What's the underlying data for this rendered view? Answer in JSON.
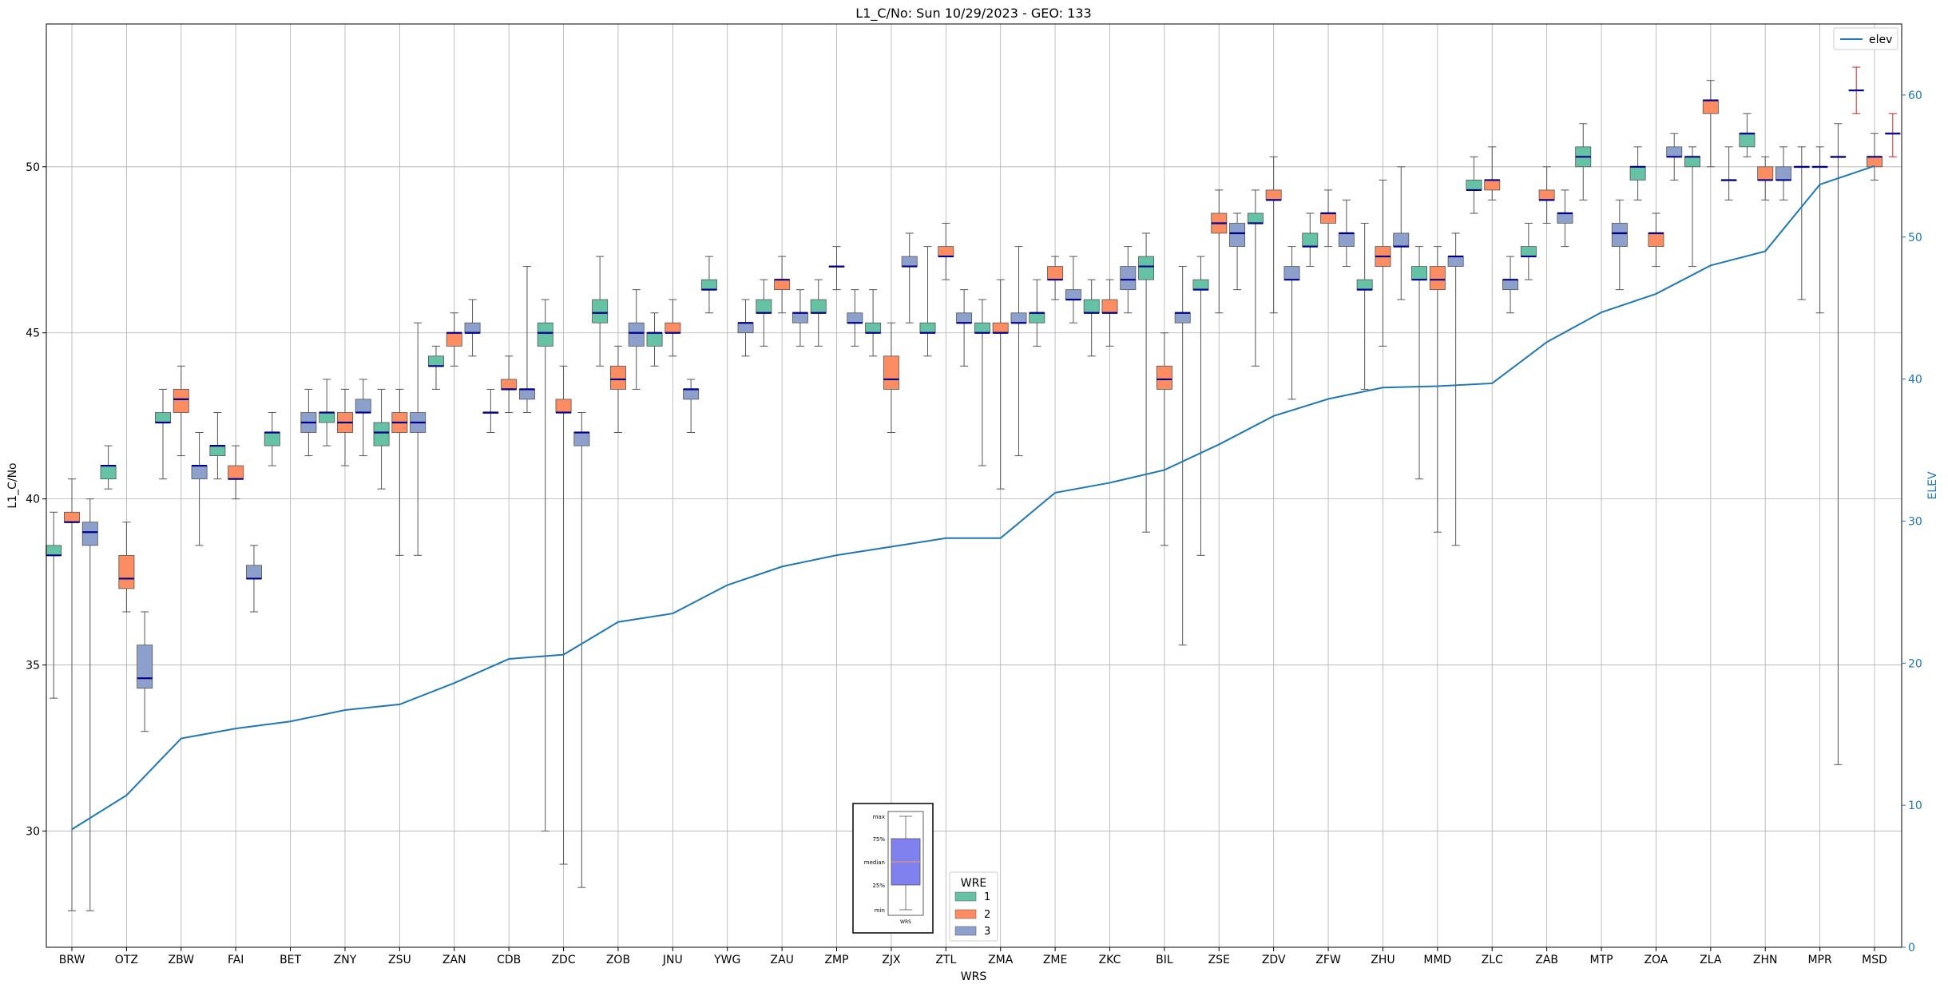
{
  "chart_data": {
    "type": "box",
    "title": "L1_C/No: Sun 10/29/2023 - GEO: 133",
    "xlabel": "WRS",
    "ylabel": "L1_C/No",
    "y2label": "ELEV",
    "ylim": [
      26.5,
      54.3
    ],
    "y2lim": [
      0,
      65
    ],
    "yticks": [
      30,
      35,
      40,
      45,
      50
    ],
    "y2ticks": [
      0,
      10,
      20,
      30,
      40,
      50,
      60
    ],
    "grid": true,
    "categories": [
      "BRW",
      "OTZ",
      "ZBW",
      "FAI",
      "BET",
      "ZNY",
      "ZSU",
      "ZAN",
      "CDB",
      "ZDC",
      "ZOB",
      "JNU",
      "YWG",
      "ZAU",
      "ZMP",
      "ZJX",
      "ZTL",
      "ZMA",
      "ZME",
      "ZKC",
      "BIL",
      "ZSE",
      "ZDV",
      "ZFW",
      "ZHU",
      "MMD",
      "ZLC",
      "ZAB",
      "MTP",
      "ZOA",
      "ZLA",
      "ZHN",
      "MPR",
      "MSD"
    ],
    "hue_title": "WRE",
    "hue_levels": [
      "1",
      "2",
      "3"
    ],
    "colors": {
      "1": "#66c2a5",
      "2": "#fc8d62",
      "3": "#8da0cb",
      "median": "#00008b",
      "whisker": "#555555",
      "red_whisker": "#d62728",
      "elev": "#1f77b4"
    },
    "boxes": [
      {
        "cat": "BRW",
        "wre": 1,
        "min": 34.0,
        "q1": 38.3,
        "med": 38.3,
        "q3": 38.6,
        "max": 39.6
      },
      {
        "cat": "BRW",
        "wre": 2,
        "min": 27.6,
        "q1": 39.3,
        "med": 39.3,
        "q3": 39.6,
        "max": 40.6
      },
      {
        "cat": "BRW",
        "wre": 3,
        "min": 27.6,
        "q1": 38.6,
        "med": 39.0,
        "q3": 39.3,
        "max": 40.0
      },
      {
        "cat": "OTZ",
        "wre": 1,
        "min": 40.3,
        "q1": 40.6,
        "med": 41.0,
        "q3": 41.0,
        "max": 41.6
      },
      {
        "cat": "OTZ",
        "wre": 2,
        "min": 36.6,
        "q1": 37.3,
        "med": 37.6,
        "q3": 38.3,
        "max": 39.3
      },
      {
        "cat": "OTZ",
        "wre": 3,
        "min": 33.0,
        "q1": 34.3,
        "med": 34.6,
        "q3": 35.6,
        "max": 36.6
      },
      {
        "cat": "ZBW",
        "wre": 1,
        "min": 40.6,
        "q1": 42.3,
        "med": 42.3,
        "q3": 42.6,
        "max": 43.3
      },
      {
        "cat": "ZBW",
        "wre": 2,
        "min": 41.3,
        "q1": 42.6,
        "med": 43.0,
        "q3": 43.3,
        "max": 44.0
      },
      {
        "cat": "ZBW",
        "wre": 3,
        "min": 38.6,
        "q1": 40.6,
        "med": 41.0,
        "q3": 41.0,
        "max": 42.0
      },
      {
        "cat": "FAI",
        "wre": 1,
        "min": 40.6,
        "q1": 41.3,
        "med": 41.6,
        "q3": 41.6,
        "max": 42.6
      },
      {
        "cat": "FAI",
        "wre": 2,
        "min": 40.0,
        "q1": 40.6,
        "med": 40.6,
        "q3": 41.0,
        "max": 41.6
      },
      {
        "cat": "FAI",
        "wre": 3,
        "min": 36.6,
        "q1": 37.6,
        "med": 37.6,
        "q3": 38.0,
        "max": 38.6
      },
      {
        "cat": "BET",
        "wre": 1,
        "min": 41.0,
        "q1": 41.6,
        "med": 42.0,
        "q3": 42.0,
        "max": 42.6
      },
      {
        "cat": "BET",
        "wre": 3,
        "min": 41.3,
        "q1": 42.0,
        "med": 42.3,
        "q3": 42.6,
        "max": 43.3
      },
      {
        "cat": "ZNY",
        "wre": 1,
        "min": 41.6,
        "q1": 42.3,
        "med": 42.6,
        "q3": 42.6,
        "max": 43.6
      },
      {
        "cat": "ZNY",
        "wre": 2,
        "min": 41.0,
        "q1": 42.0,
        "med": 42.3,
        "q3": 42.6,
        "max": 43.3
      },
      {
        "cat": "ZNY",
        "wre": 3,
        "min": 41.3,
        "q1": 42.6,
        "med": 42.6,
        "q3": 43.0,
        "max": 43.6
      },
      {
        "cat": "ZSU",
        "wre": 1,
        "min": 40.3,
        "q1": 41.6,
        "med": 42.0,
        "q3": 42.3,
        "max": 43.3
      },
      {
        "cat": "ZSU",
        "wre": 2,
        "min": 38.3,
        "q1": 42.0,
        "med": 42.3,
        "q3": 42.6,
        "max": 43.3
      },
      {
        "cat": "ZSU",
        "wre": 3,
        "min": 38.3,
        "q1": 42.0,
        "med": 42.3,
        "q3": 42.6,
        "max": 45.3
      },
      {
        "cat": "ZAN",
        "wre": 1,
        "min": 43.3,
        "q1": 44.0,
        "med": 44.0,
        "q3": 44.3,
        "max": 44.6
      },
      {
        "cat": "ZAN",
        "wre": 2,
        "min": 44.0,
        "q1": 44.6,
        "med": 45.0,
        "q3": 45.0,
        "max": 45.6
      },
      {
        "cat": "ZAN",
        "wre": 3,
        "min": 44.3,
        "q1": 45.0,
        "med": 45.0,
        "q3": 45.3,
        "max": 46.0
      },
      {
        "cat": "CDB",
        "wre": 1,
        "min": 42.0,
        "q1": 42.6,
        "med": 42.6,
        "q3": 42.6,
        "max": 43.3
      },
      {
        "cat": "CDB",
        "wre": 2,
        "min": 42.6,
        "q1": 43.3,
        "med": 43.3,
        "q3": 43.6,
        "max": 44.3
      },
      {
        "cat": "CDB",
        "wre": 3,
        "min": 42.6,
        "q1": 43.0,
        "med": 43.3,
        "q3": 43.3,
        "max": 47.0
      },
      {
        "cat": "ZDC",
        "wre": 1,
        "min": 30.0,
        "q1": 44.6,
        "med": 45.0,
        "q3": 45.3,
        "max": 46.0
      },
      {
        "cat": "ZDC",
        "wre": 2,
        "min": 29.0,
        "q1": 42.6,
        "med": 42.6,
        "q3": 43.0,
        "max": 44.0
      },
      {
        "cat": "ZDC",
        "wre": 3,
        "min": 28.3,
        "q1": 41.6,
        "med": 42.0,
        "q3": 42.0,
        "max": 42.6
      },
      {
        "cat": "ZOB",
        "wre": 1,
        "min": 44.0,
        "q1": 45.3,
        "med": 45.6,
        "q3": 46.0,
        "max": 47.3
      },
      {
        "cat": "ZOB",
        "wre": 2,
        "min": 42.0,
        "q1": 43.3,
        "med": 43.6,
        "q3": 44.0,
        "max": 44.6
      },
      {
        "cat": "ZOB",
        "wre": 3,
        "min": 43.3,
        "q1": 44.6,
        "med": 45.0,
        "q3": 45.3,
        "max": 46.3
      },
      {
        "cat": "JNU",
        "wre": 1,
        "min": 44.0,
        "q1": 44.6,
        "med": 45.0,
        "q3": 45.0,
        "max": 45.6
      },
      {
        "cat": "JNU",
        "wre": 2,
        "min": 44.3,
        "q1": 45.0,
        "med": 45.0,
        "q3": 45.3,
        "max": 46.0
      },
      {
        "cat": "JNU",
        "wre": 3,
        "min": 42.0,
        "q1": 43.0,
        "med": 43.3,
        "q3": 43.3,
        "max": 43.6
      },
      {
        "cat": "YWG",
        "wre": 1,
        "min": 45.6,
        "q1": 46.3,
        "med": 46.3,
        "q3": 46.6,
        "max": 47.3
      },
      {
        "cat": "YWG",
        "wre": 3,
        "min": 44.3,
        "q1": 45.0,
        "med": 45.3,
        "q3": 45.3,
        "max": 46.0
      },
      {
        "cat": "ZAU",
        "wre": 1,
        "min": 44.6,
        "q1": 45.6,
        "med": 45.6,
        "q3": 46.0,
        "max": 46.6
      },
      {
        "cat": "ZAU",
        "wre": 2,
        "min": 45.6,
        "q1": 46.3,
        "med": 46.6,
        "q3": 46.6,
        "max": 47.3
      },
      {
        "cat": "ZAU",
        "wre": 3,
        "min": 44.6,
        "q1": 45.3,
        "med": 45.6,
        "q3": 45.6,
        "max": 46.3
      },
      {
        "cat": "ZMP",
        "wre": 1,
        "min": 44.6,
        "q1": 45.6,
        "med": 45.6,
        "q3": 46.0,
        "max": 46.6
      },
      {
        "cat": "ZMP",
        "wre": 2,
        "min": 46.3,
        "q1": 47.0,
        "med": 47.0,
        "q3": 47.0,
        "max": 47.6
      },
      {
        "cat": "ZMP",
        "wre": 3,
        "min": 44.6,
        "q1": 45.3,
        "med": 45.3,
        "q3": 45.6,
        "max": 46.3
      },
      {
        "cat": "ZJX",
        "wre": 1,
        "min": 44.3,
        "q1": 45.0,
        "med": 45.0,
        "q3": 45.3,
        "max": 46.3
      },
      {
        "cat": "ZJX",
        "wre": 2,
        "min": 42.0,
        "q1": 43.3,
        "med": 43.6,
        "q3": 44.3,
        "max": 45.3
      },
      {
        "cat": "ZJX",
        "wre": 3,
        "min": 45.3,
        "q1": 47.0,
        "med": 47.0,
        "q3": 47.3,
        "max": 48.0
      },
      {
        "cat": "ZTL",
        "wre": 1,
        "min": 44.3,
        "q1": 45.0,
        "med": 45.0,
        "q3": 45.3,
        "max": 47.6
      },
      {
        "cat": "ZTL",
        "wre": 2,
        "min": 46.6,
        "q1": 47.3,
        "med": 47.3,
        "q3": 47.6,
        "max": 48.3
      },
      {
        "cat": "ZTL",
        "wre": 3,
        "min": 44.0,
        "q1": 45.3,
        "med": 45.3,
        "q3": 45.6,
        "max": 46.3
      },
      {
        "cat": "ZMA",
        "wre": 1,
        "min": 41.0,
        "q1": 45.0,
        "med": 45.0,
        "q3": 45.3,
        "max": 46.0
      },
      {
        "cat": "ZMA",
        "wre": 2,
        "min": 40.3,
        "q1": 45.0,
        "med": 45.0,
        "q3": 45.3,
        "max": 46.6
      },
      {
        "cat": "ZMA",
        "wre": 3,
        "min": 41.3,
        "q1": 45.3,
        "med": 45.3,
        "q3": 45.6,
        "max": 47.6
      },
      {
        "cat": "ZME",
        "wre": 1,
        "min": 44.6,
        "q1": 45.3,
        "med": 45.6,
        "q3": 45.6,
        "max": 46.6
      },
      {
        "cat": "ZME",
        "wre": 2,
        "min": 46.0,
        "q1": 46.6,
        "med": 46.6,
        "q3": 47.0,
        "max": 47.3
      },
      {
        "cat": "ZME",
        "wre": 3,
        "min": 45.3,
        "q1": 46.0,
        "med": 46.0,
        "q3": 46.3,
        "max": 47.3
      },
      {
        "cat": "ZKC",
        "wre": 1,
        "min": 44.3,
        "q1": 45.6,
        "med": 45.6,
        "q3": 46.0,
        "max": 46.6
      },
      {
        "cat": "ZKC",
        "wre": 2,
        "min": 44.6,
        "q1": 45.6,
        "med": 45.6,
        "q3": 46.0,
        "max": 46.6
      },
      {
        "cat": "ZKC",
        "wre": 3,
        "min": 45.6,
        "q1": 46.3,
        "med": 46.6,
        "q3": 47.0,
        "max": 47.6
      },
      {
        "cat": "BIL",
        "wre": 1,
        "min": 39.0,
        "q1": 46.6,
        "med": 47.0,
        "q3": 47.3,
        "max": 48.0
      },
      {
        "cat": "BIL",
        "wre": 2,
        "min": 38.6,
        "q1": 43.3,
        "med": 43.6,
        "q3": 44.0,
        "max": 45.0
      },
      {
        "cat": "BIL",
        "wre": 3,
        "min": 35.6,
        "q1": 45.3,
        "med": 45.6,
        "q3": 45.6,
        "max": 47.0
      },
      {
        "cat": "ZSE",
        "wre": 1,
        "min": 38.3,
        "q1": 46.3,
        "med": 46.3,
        "q3": 46.6,
        "max": 47.3
      },
      {
        "cat": "ZSE",
        "wre": 2,
        "min": 45.6,
        "q1": 48.0,
        "med": 48.3,
        "q3": 48.6,
        "max": 49.3
      },
      {
        "cat": "ZSE",
        "wre": 3,
        "min": 46.3,
        "q1": 47.6,
        "med": 48.0,
        "q3": 48.3,
        "max": 48.6
      },
      {
        "cat": "ZDV",
        "wre": 1,
        "min": 44.0,
        "q1": 48.3,
        "med": 48.3,
        "q3": 48.6,
        "max": 49.3
      },
      {
        "cat": "ZDV",
        "wre": 2,
        "min": 45.6,
        "q1": 49.0,
        "med": 49.0,
        "q3": 49.3,
        "max": 50.3
      },
      {
        "cat": "ZDV",
        "wre": 3,
        "min": 43.0,
        "q1": 46.6,
        "med": 46.6,
        "q3": 47.0,
        "max": 47.6
      },
      {
        "cat": "ZFW",
        "wre": 1,
        "min": 47.0,
        "q1": 47.6,
        "med": 47.6,
        "q3": 48.0,
        "max": 48.6
      },
      {
        "cat": "ZFW",
        "wre": 2,
        "min": 47.6,
        "q1": 48.3,
        "med": 48.6,
        "q3": 48.6,
        "max": 49.3
      },
      {
        "cat": "ZFW",
        "wre": 3,
        "min": 47.0,
        "q1": 47.6,
        "med": 48.0,
        "q3": 48.0,
        "max": 49.0
      },
      {
        "cat": "ZHU",
        "wre": 1,
        "min": 43.3,
        "q1": 46.3,
        "med": 46.3,
        "q3": 46.6,
        "max": 48.3
      },
      {
        "cat": "ZHU",
        "wre": 2,
        "min": 44.6,
        "q1": 47.0,
        "med": 47.3,
        "q3": 47.6,
        "max": 49.6
      },
      {
        "cat": "ZHU",
        "wre": 3,
        "min": 46.0,
        "q1": 47.6,
        "med": 47.6,
        "q3": 48.0,
        "max": 50.0
      },
      {
        "cat": "MMD",
        "wre": 1,
        "min": 40.6,
        "q1": 46.6,
        "med": 46.6,
        "q3": 47.0,
        "max": 47.6
      },
      {
        "cat": "MMD",
        "wre": 2,
        "min": 39.0,
        "q1": 46.3,
        "med": 46.6,
        "q3": 47.0,
        "max": 47.6
      },
      {
        "cat": "MMD",
        "wre": 3,
        "min": 38.6,
        "q1": 47.0,
        "med": 47.3,
        "q3": 47.3,
        "max": 48.0
      },
      {
        "cat": "ZLC",
        "wre": 1,
        "min": 48.6,
        "q1": 49.3,
        "med": 49.3,
        "q3": 49.6,
        "max": 50.3
      },
      {
        "cat": "ZLC",
        "wre": 2,
        "min": 49.0,
        "q1": 49.3,
        "med": 49.6,
        "q3": 49.6,
        "max": 50.6
      },
      {
        "cat": "ZLC",
        "wre": 3,
        "min": 45.6,
        "q1": 46.3,
        "med": 46.6,
        "q3": 46.6,
        "max": 47.3
      },
      {
        "cat": "ZAB",
        "wre": 1,
        "min": 46.6,
        "q1": 47.3,
        "med": 47.3,
        "q3": 47.6,
        "max": 48.3
      },
      {
        "cat": "ZAB",
        "wre": 2,
        "min": 48.3,
        "q1": 49.0,
        "med": 49.0,
        "q3": 49.3,
        "max": 50.0
      },
      {
        "cat": "ZAB",
        "wre": 3,
        "min": 47.6,
        "q1": 48.3,
        "med": 48.6,
        "q3": 48.6,
        "max": 49.3
      },
      {
        "cat": "MTP",
        "wre": 1,
        "min": 49.0,
        "q1": 50.0,
        "med": 50.3,
        "q3": 50.6,
        "max": 51.3
      },
      {
        "cat": "MTP",
        "wre": 3,
        "min": 46.3,
        "q1": 47.6,
        "med": 48.0,
        "q3": 48.3,
        "max": 49.0
      },
      {
        "cat": "ZOA",
        "wre": 1,
        "min": 49.0,
        "q1": 49.6,
        "med": 50.0,
        "q3": 50.0,
        "max": 50.6
      },
      {
        "cat": "ZOA",
        "wre": 2,
        "min": 47.0,
        "q1": 47.6,
        "med": 48.0,
        "q3": 48.0,
        "max": 48.6
      },
      {
        "cat": "ZOA",
        "wre": 3,
        "min": 49.6,
        "q1": 50.3,
        "med": 50.3,
        "q3": 50.6,
        "max": 51.0
      },
      {
        "cat": "ZLA",
        "wre": 1,
        "min": 47.0,
        "q1": 50.0,
        "med": 50.3,
        "q3": 50.3,
        "max": 50.6
      },
      {
        "cat": "ZLA",
        "wre": 2,
        "min": 50.0,
        "q1": 51.6,
        "med": 52.0,
        "q3": 52.0,
        "max": 52.6
      },
      {
        "cat": "ZLA",
        "wre": 3,
        "min": 49.0,
        "q1": 49.6,
        "med": 49.6,
        "q3": 49.6,
        "max": 50.6
      },
      {
        "cat": "ZHN",
        "wre": 1,
        "min": 50.3,
        "q1": 50.6,
        "med": 51.0,
        "q3": 51.0,
        "max": 51.6
      },
      {
        "cat": "ZHN",
        "wre": 2,
        "min": 49.0,
        "q1": 49.6,
        "med": 49.6,
        "q3": 50.0,
        "max": 50.3
      },
      {
        "cat": "ZHN",
        "wre": 3,
        "min": 49.0,
        "q1": 49.6,
        "med": 49.6,
        "q3": 50.0,
        "max": 50.6
      },
      {
        "cat": "MPR",
        "wre": 1,
        "min": 46.0,
        "q1": 50.0,
        "med": 50.0,
        "q3": 50.0,
        "max": 50.6
      },
      {
        "cat": "MPR",
        "wre": 2,
        "min": 45.6,
        "q1": 50.0,
        "med": 50.0,
        "q3": 50.0,
        "max": 50.6
      },
      {
        "cat": "MPR",
        "wre": 3,
        "min": 32.0,
        "q1": 50.3,
        "med": 50.3,
        "q3": 50.3,
        "max": 51.3
      },
      {
        "cat": "MSD",
        "wre": 1,
        "min": 51.6,
        "q1": 52.3,
        "med": 52.3,
        "q3": 52.3,
        "max": 53.0,
        "red": true
      },
      {
        "cat": "MSD",
        "wre": 2,
        "min": 49.6,
        "q1": 50.0,
        "med": 50.3,
        "q3": 50.3,
        "max": 51.0
      },
      {
        "cat": "MSD",
        "wre": 3,
        "min": 50.3,
        "q1": 51.0,
        "med": 51.0,
        "q3": 51.0,
        "max": 51.6,
        "red": true
      }
    ],
    "elev_series": {
      "name": "elev",
      "values": [
        8.3,
        10.7,
        14.7,
        15.4,
        15.9,
        16.7,
        17.1,
        18.6,
        20.3,
        20.6,
        22.9,
        23.5,
        25.5,
        26.8,
        27.6,
        28.2,
        28.8,
        28.8,
        32.0,
        32.7,
        33.6,
        35.4,
        37.4,
        38.6,
        39.4,
        39.5,
        39.7,
        42.6,
        44.7,
        46.0,
        48.0,
        49.0,
        53.7,
        55.0
      ]
    },
    "legend_series": {
      "label": "elev",
      "position": "top-right"
    },
    "legend_hue": {
      "title": "WRE",
      "position": "lower-center"
    },
    "inset_key": {
      "labels": [
        "max",
        "75%",
        "median",
        "25%",
        "min"
      ],
      "xtick": "WRS"
    }
  }
}
